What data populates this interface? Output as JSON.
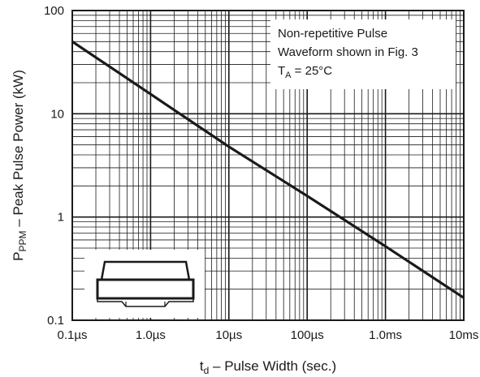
{
  "chart_data": {
    "type": "line",
    "scale": {
      "x": "log",
      "y": "log"
    },
    "grid": true,
    "xlabel": {
      "main": "t",
      "sub": "d",
      "rest": " – Pulse Width (sec.)"
    },
    "ylabel": {
      "main": "P",
      "sub": "PPM",
      "rest": " – Peak Pulse Power (kW)"
    },
    "xlim": [
      1e-07,
      0.01
    ],
    "ylim": [
      0.1,
      100
    ],
    "x_ticks": [
      {
        "value": 1e-07,
        "label": "0.1µs"
      },
      {
        "value": 1e-06,
        "label": "1.0µs"
      },
      {
        "value": 1e-05,
        "label": "10µs"
      },
      {
        "value": 0.0001,
        "label": "100µs"
      },
      {
        "value": 0.001,
        "label": "1.0ms"
      },
      {
        "value": 0.01,
        "label": "10ms"
      }
    ],
    "y_ticks": [
      {
        "value": 0.1,
        "label": "0.1"
      },
      {
        "value": 1,
        "label": "1"
      },
      {
        "value": 10,
        "label": "10"
      },
      {
        "value": 100,
        "label": "100"
      }
    ],
    "series": [
      {
        "x": [
          1e-07,
          1e-06,
          1e-05,
          0.0001,
          0.001,
          0.01
        ],
        "y": [
          50,
          15.5,
          4.8,
          1.6,
          0.52,
          0.165
        ],
        "color": "#1a1a1a"
      }
    ],
    "annotation": {
      "lines": [
        "Non-repetitive Pulse",
        "Waveform shown in Fig. 3"
      ],
      "temp": {
        "main": "T",
        "sub": "A",
        "rest": " = 25°C"
      }
    },
    "package_icon": "package-outline-icon"
  }
}
